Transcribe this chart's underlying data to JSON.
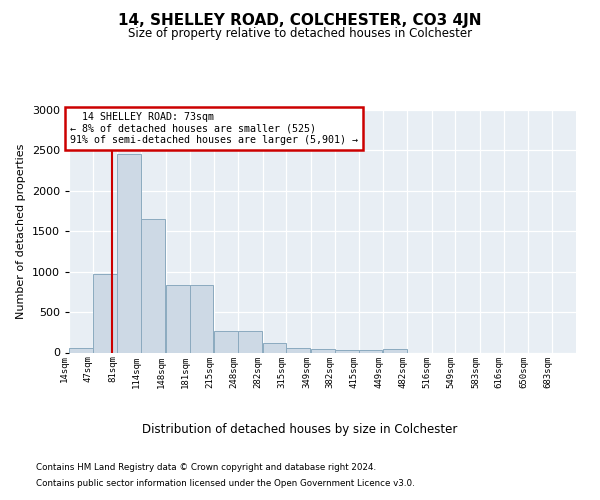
{
  "title": "14, SHELLEY ROAD, COLCHESTER, CO3 4JN",
  "subtitle": "Size of property relative to detached houses in Colchester",
  "xlabel": "Distribution of detached houses by size in Colchester",
  "ylabel": "Number of detached properties",
  "footer_line1": "Contains HM Land Registry data © Crown copyright and database right 2024.",
  "footer_line2": "Contains public sector information licensed under the Open Government Licence v3.0.",
  "annotation_line1": "14 SHELLEY ROAD: 73sqm",
  "annotation_line2": "← 8% of detached houses are smaller (525)",
  "annotation_line3": "91% of semi-detached houses are larger (5,901) →",
  "property_size": 73,
  "bar_color": "#cdd9e5",
  "bar_edge_color": "#8baabf",
  "marker_color": "#cc0000",
  "background_color": "#e8eef4",
  "bins": [
    14,
    47,
    81,
    114,
    148,
    181,
    215,
    248,
    282,
    315,
    349,
    382,
    415,
    449,
    482,
    516,
    549,
    583,
    616,
    650,
    683
  ],
  "counts": [
    60,
    975,
    2450,
    1650,
    830,
    830,
    270,
    270,
    115,
    55,
    40,
    35,
    30,
    40,
    0,
    0,
    0,
    0,
    0,
    0,
    0
  ],
  "ylim": [
    0,
    3000
  ],
  "yticks": [
    0,
    500,
    1000,
    1500,
    2000,
    2500,
    3000
  ],
  "annotation_box_color": "#ffffff",
  "annotation_box_edge": "#cc0000",
  "fig_width": 6.0,
  "fig_height": 5.0,
  "dpi": 100
}
